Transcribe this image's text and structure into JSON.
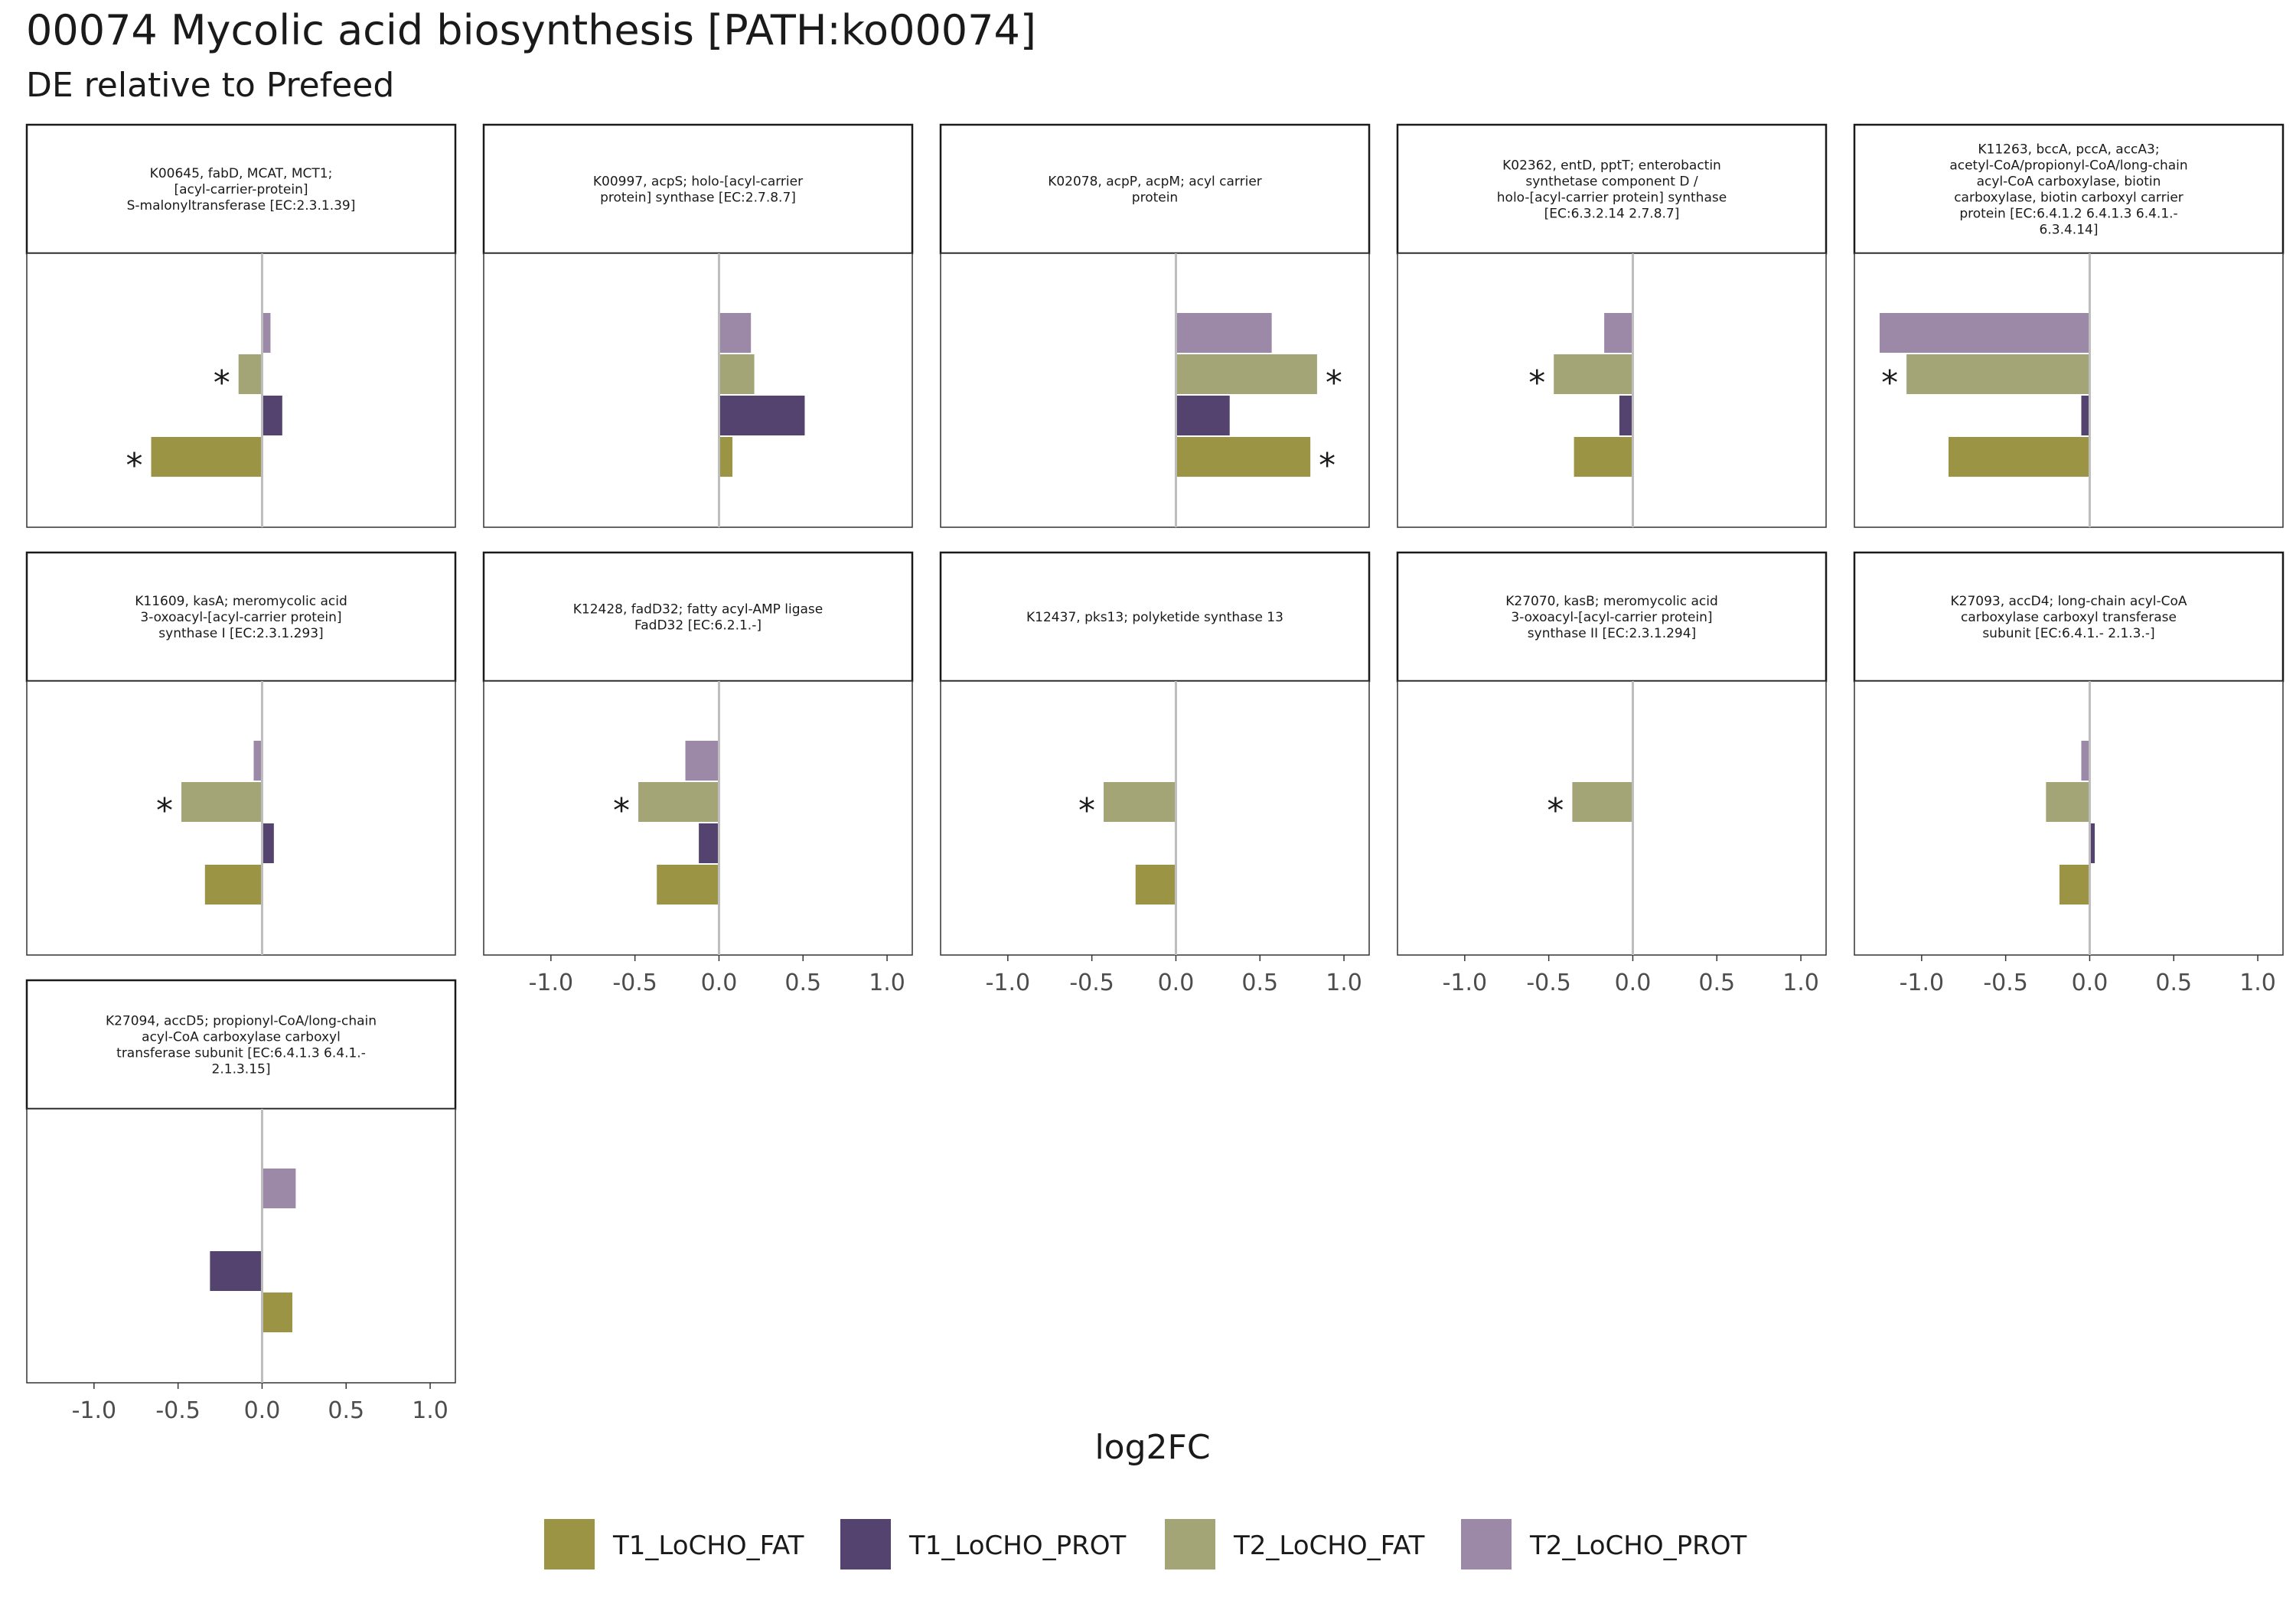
{
  "title": "00074 Mycolic acid biosynthesis [PATH:ko00074]",
  "subtitle": "DE relative to Prefeed",
  "chart_data": {
    "type": "bar",
    "orientation": "horizontal",
    "xlabel": "log2FC",
    "xlim": [
      -1.4,
      1.15
    ],
    "xticks": [
      -1.0,
      -0.5,
      0.0,
      0.5,
      1.0
    ],
    "xtick_labels": [
      "-1.0",
      "-0.5",
      "0.0",
      "0.5",
      "1.0"
    ],
    "grid": false,
    "legend_position": "bottom",
    "series_order": [
      "T1_LoCHO_FAT",
      "T1_LoCHO_PROT",
      "T2_LoCHO_FAT",
      "T2_LoCHO_PROT"
    ],
    "colors": {
      "T1_LoCHO_FAT": "#9c9445",
      "T1_LoCHO_PROT": "#54436e",
      "T2_LoCHO_FAT": "#a3a577",
      "T2_LoCHO_PROT": "#9c88a7"
    },
    "significance_marker": "*",
    "panels": [
      {
        "label": [
          "K00645, fabD, MCAT, MCT1;",
          "[acyl-carrier-protein]",
          "S-malonyltransferase [EC:2.3.1.39]"
        ],
        "values": {
          "T1_LoCHO_FAT": -0.66,
          "T1_LoCHO_PROT": 0.12,
          "T2_LoCHO_FAT": -0.14,
          "T2_LoCHO_PROT": 0.05
        },
        "significant": [
          "T1_LoCHO_FAT",
          "T2_LoCHO_FAT"
        ]
      },
      {
        "label": [
          "K00997, acpS; holo-[acyl-carrier",
          "protein] synthase [EC:2.7.8.7]"
        ],
        "values": {
          "T1_LoCHO_FAT": 0.08,
          "T1_LoCHO_PROT": 0.51,
          "T2_LoCHO_FAT": 0.21,
          "T2_LoCHO_PROT": 0.19
        },
        "significant": []
      },
      {
        "label": [
          "K02078, acpP, acpM; acyl carrier",
          "protein"
        ],
        "values": {
          "T1_LoCHO_FAT": 0.8,
          "T1_LoCHO_PROT": 0.32,
          "T2_LoCHO_FAT": 0.84,
          "T2_LoCHO_PROT": 0.57
        },
        "significant": [
          "T1_LoCHO_FAT",
          "T2_LoCHO_FAT"
        ]
      },
      {
        "label": [
          "K02362, entD, pptT; enterobactin",
          "synthetase component D /",
          "holo-[acyl-carrier protein] synthase",
          "[EC:6.3.2.14 2.7.8.7]"
        ],
        "values": {
          "T1_LoCHO_FAT": -0.35,
          "T1_LoCHO_PROT": -0.08,
          "T2_LoCHO_FAT": -0.47,
          "T2_LoCHO_PROT": -0.17
        },
        "significant": [
          "T2_LoCHO_FAT"
        ]
      },
      {
        "label": [
          "K11263, bccA, pccA, accA3;",
          "acetyl-CoA/propionyl-CoA/long-chain",
          "acyl-CoA carboxylase, biotin",
          "carboxylase, biotin carboxyl carrier",
          "protein [EC:6.4.1.2 6.4.1.3 6.4.1.-",
          "6.3.4.14]"
        ],
        "values": {
          "T1_LoCHO_FAT": -0.84,
          "T1_LoCHO_PROT": -0.05,
          "T2_LoCHO_FAT": -1.09,
          "T2_LoCHO_PROT": -1.25
        },
        "significant": [
          "T2_LoCHO_FAT"
        ]
      },
      {
        "label": [
          "K11609, kasA; meromycolic acid",
          "3-oxoacyl-[acyl-carrier protein]",
          "synthase I [EC:2.3.1.293]"
        ],
        "values": {
          "T1_LoCHO_FAT": -0.34,
          "T1_LoCHO_PROT": 0.07,
          "T2_LoCHO_FAT": -0.48,
          "T2_LoCHO_PROT": -0.05
        },
        "significant": [
          "T2_LoCHO_FAT"
        ]
      },
      {
        "label": [
          "K12428, fadD32; fatty acyl-AMP ligase",
          "FadD32 [EC:6.2.1.-]"
        ],
        "values": {
          "T1_LoCHO_FAT": -0.37,
          "T1_LoCHO_PROT": -0.12,
          "T2_LoCHO_FAT": -0.48,
          "T2_LoCHO_PROT": -0.2
        },
        "significant": [
          "T2_LoCHO_FAT"
        ]
      },
      {
        "label": [
          "K12437, pks13; polyketide synthase 13"
        ],
        "values": {
          "T1_LoCHO_FAT": -0.24,
          "T1_LoCHO_PROT": null,
          "T2_LoCHO_FAT": -0.43,
          "T2_LoCHO_PROT": null
        },
        "significant": [
          "T2_LoCHO_FAT"
        ]
      },
      {
        "label": [
          "K27070, kasB; meromycolic acid",
          "3-oxoacyl-[acyl-carrier protein]",
          "synthase II [EC:2.3.1.294]"
        ],
        "values": {
          "T1_LoCHO_FAT": null,
          "T1_LoCHO_PROT": null,
          "T2_LoCHO_FAT": -0.36,
          "T2_LoCHO_PROT": null
        },
        "significant": [
          "T2_LoCHO_FAT"
        ]
      },
      {
        "label": [
          "K27093, accD4; long-chain acyl-CoA",
          "carboxylase carboxyl transferase",
          "subunit [EC:6.4.1.- 2.1.3.-]"
        ],
        "values": {
          "T1_LoCHO_FAT": -0.18,
          "T1_LoCHO_PROT": 0.03,
          "T2_LoCHO_FAT": -0.26,
          "T2_LoCHO_PROT": -0.05
        },
        "significant": []
      },
      {
        "label": [
          "K27094, accD5; propionyl-CoA/long-chain",
          "acyl-CoA carboxylase carboxyl",
          "transferase subunit [EC:6.4.1.3 6.4.1.-",
          "2.1.3.15]"
        ],
        "values": {
          "T1_LoCHO_FAT": 0.18,
          "T1_LoCHO_PROT": -0.31,
          "T2_LoCHO_FAT": null,
          "T2_LoCHO_PROT": 0.2
        },
        "significant": []
      }
    ]
  }
}
